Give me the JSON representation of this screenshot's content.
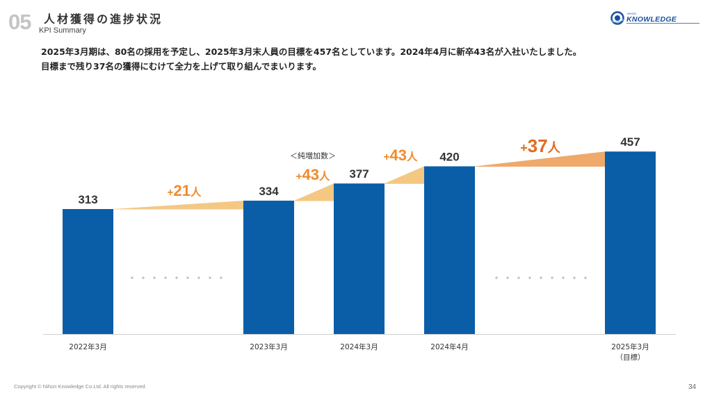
{
  "header": {
    "section_number": "05",
    "title": "人材獲得の進捗状況",
    "subtitle": "KPI Summary",
    "logo_small": "NIHON",
    "logo_text": "KNOWLEDGE"
  },
  "description": {
    "line1": "2025年3月期は、80名の採用を予定し、2025年3月末人員の目標を457名としています。2024年4月に新卒43名が入社いたしました。",
    "line2": "目標まで残り37名の獲得にむけて全力を上げて取り組んでまいります。"
  },
  "chart_data": {
    "type": "bar",
    "categories": [
      "2022年3月",
      "2023年3月",
      "2024年3月",
      "2024年4月",
      "2025年3月"
    ],
    "category_sublabels": [
      "",
      "",
      "",
      "",
      "（目標）"
    ],
    "values": [
      313,
      334,
      377,
      420,
      457
    ],
    "increments": [
      {
        "from": 0,
        "to": 1,
        "sign": "+",
        "value": "21",
        "unit": "人"
      },
      {
        "from": 1,
        "to": 2,
        "sign": "+",
        "value": "43",
        "unit": "人"
      },
      {
        "from": 2,
        "to": 3,
        "sign": "+",
        "value": "43",
        "unit": "人"
      },
      {
        "from": 3,
        "to": 4,
        "sign": "+",
        "value": "37",
        "unit": "人"
      }
    ],
    "annotation": "＜純増加数＞",
    "ylim": [
      0,
      500
    ],
    "grid": false,
    "colors": {
      "bar": "#0a5ea8",
      "increment_fill": "#f4c783",
      "increment_fill_last": "#efa96b",
      "increment_text": "#f08a2c",
      "increment_text_last": "#e46a1f",
      "dots": "#bcbcbc"
    }
  },
  "footer": {
    "copyright": "Copyright © Nihon Knowledge Co.Ltd. All rights reserved.",
    "page": "34"
  }
}
